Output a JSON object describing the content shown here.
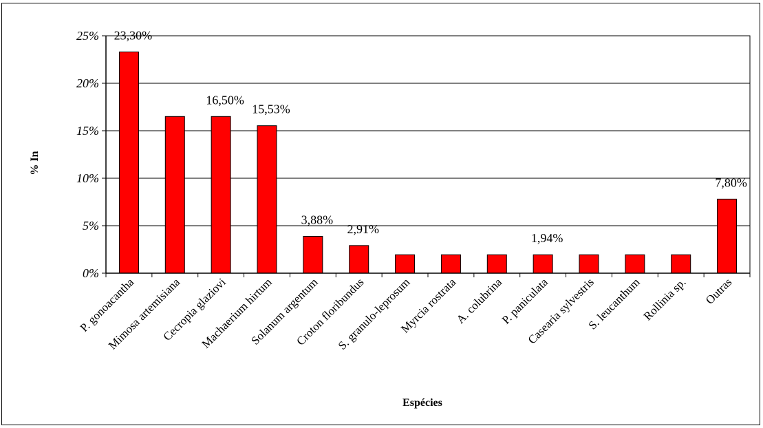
{
  "chart_data": {
    "type": "bar",
    "title": "",
    "xlabel": "Espécies",
    "ylabel": "% In",
    "ylim": [
      0,
      25
    ],
    "yticks": [
      "0%",
      "5%",
      "10%",
      "15%",
      "20%",
      "25%"
    ],
    "categories": [
      "P. gonoacantha",
      "Mimosa artemisiana",
      "Cecropia glaziovi",
      "Machaerium hirtum",
      "Solanum argentum",
      "Croton floribundus",
      "S. granulo-leprosum",
      "Myrcia rostrata",
      "A. colubrina",
      "P. paniculata",
      "Casearia sylvestris",
      "S. leucanthum",
      "Rollinia sp.",
      "Outras"
    ],
    "values": [
      23.3,
      16.5,
      16.5,
      15.53,
      3.88,
      2.91,
      1.94,
      1.94,
      1.94,
      1.94,
      1.94,
      1.94,
      1.94,
      7.8
    ],
    "data_labels": [
      {
        "category": "P. gonoacantha",
        "text": "23,30%"
      },
      {
        "category": "Cecropia glaziovi",
        "text": "16,50%"
      },
      {
        "category": "Machaerium hirtum",
        "text": "15,53%"
      },
      {
        "category": "Solanum argentum",
        "text": "3,88%"
      },
      {
        "category": "Croton floribundus",
        "text": "2,91%"
      },
      {
        "category": "P. paniculata",
        "text": "1,94%"
      },
      {
        "category": "Outras",
        "text": "7,80%"
      }
    ],
    "bar_color": "#ff0000",
    "grid": true,
    "legend": "none"
  }
}
